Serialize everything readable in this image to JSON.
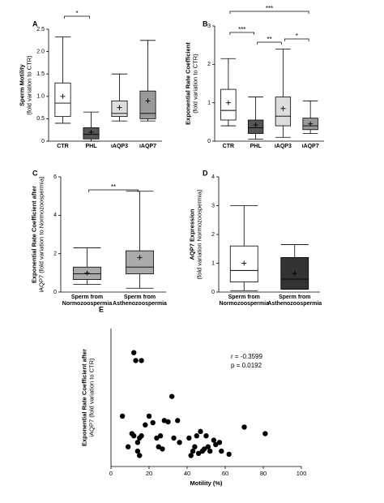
{
  "chart_data": [
    {
      "type": "box",
      "label": "A",
      "y_label": [
        "Sperm Motility",
        "(fold variation to CTR)"
      ],
      "categories": [
        "CTR",
        "PHL",
        "iAQP3",
        "iAQP7"
      ],
      "boxes": [
        {
          "min": 0.4,
          "q1": 0.55,
          "median": 0.85,
          "q3": 1.3,
          "max": 2.33,
          "mean": 1.0,
          "color": "#ffffff"
        },
        {
          "min": 0.0,
          "q1": 0.05,
          "median": 0.15,
          "q3": 0.3,
          "max": 0.65,
          "mean": 0.2,
          "color": "#555555"
        },
        {
          "min": 0.45,
          "q1": 0.55,
          "median": 0.62,
          "q3": 0.9,
          "max": 1.5,
          "mean": 0.75,
          "color": "#dddddd"
        },
        {
          "min": 0.45,
          "q1": 0.5,
          "median": 0.62,
          "q3": 1.12,
          "max": 2.25,
          "mean": 0.9,
          "color": "#999999"
        }
      ],
      "ylim": [
        0,
        2.5
      ],
      "yticks": [
        0,
        0.5,
        {
          "value": 1,
          "label": "1.0"
        },
        1.5,
        {
          "value": 2,
          "label": "2.0"
        },
        2.5
      ],
      "significance": [
        {
          "from": "CTR",
          "to": "PHL",
          "label": "*"
        }
      ]
    },
    {
      "type": "box",
      "label": "B",
      "y_label": [
        "Exponential Rate Coefficient",
        "(fold variation to CTR)"
      ],
      "categories": [
        "CTR",
        "PHL",
        "iAQP3",
        "iAQP7"
      ],
      "boxes": [
        {
          "min": 0.4,
          "q1": 0.55,
          "median": 0.8,
          "q3": 1.35,
          "max": 2.15,
          "mean": 1.0,
          "color": "#ffffff"
        },
        {
          "min": 0.05,
          "q1": 0.2,
          "median": 0.35,
          "q3": 0.55,
          "max": 1.15,
          "mean": 0.42,
          "color": "#555555"
        },
        {
          "min": 0.1,
          "q1": 0.4,
          "median": 0.65,
          "q3": 1.15,
          "max": 2.4,
          "mean": 0.85,
          "color": "#dddddd"
        },
        {
          "min": 0.2,
          "q1": 0.3,
          "median": 0.4,
          "q3": 0.6,
          "max": 1.05,
          "mean": 0.45,
          "color": "#999999"
        }
      ],
      "ylim": [
        0,
        3
      ],
      "yticks": [
        0,
        1,
        2,
        3
      ],
      "significance": [
        {
          "from": "CTR",
          "to": "iAQP7",
          "label": "***"
        },
        {
          "from": "CTR",
          "to": "PHL",
          "label": "***"
        },
        {
          "from": "PHL",
          "to": "iAQP3",
          "label": "**"
        },
        {
          "from": "iAQP3",
          "to": "iAQP7",
          "label": "*"
        }
      ]
    },
    {
      "type": "box",
      "label": "C",
      "y_label": [
        "Exponential Rate Coefficient after",
        "iAQP7 (fold variation to Normozoospermia)"
      ],
      "categories": [
        "Sperm from Normozoospermia",
        "Sperm from Asthenozoospermia"
      ],
      "boxes": [
        {
          "min": 0.4,
          "q1": 0.65,
          "median": 0.95,
          "q3": 1.3,
          "max": 2.3,
          "mean": 1.0,
          "color": "#aaaaaa"
        },
        {
          "min": 0.2,
          "q1": 0.95,
          "median": 1.3,
          "q3": 2.15,
          "max": 5.25,
          "mean": 1.8,
          "color": "#aaaaaa"
        }
      ],
      "ylim": [
        0,
        6
      ],
      "yticks": [
        0,
        2,
        4,
        6
      ],
      "significance": [
        {
          "from": "Sperm from Normozoospermia",
          "to": "Sperm from Asthenozoospermia",
          "label": "**"
        }
      ]
    },
    {
      "type": "box",
      "label": "D",
      "y_label": [
        "AQP7 Expression",
        "(fold variation Normozoospermia)"
      ],
      "categories": [
        "Sperm from Normozoospermia",
        "Sperm from Asthenozoospermia"
      ],
      "boxes": [
        {
          "min": 0.05,
          "q1": 0.35,
          "median": 0.75,
          "q3": 1.6,
          "max": 3.0,
          "mean": 1.0,
          "color": "#ffffff"
        },
        {
          "min": 0.1,
          "q1": 0.1,
          "median": 0.45,
          "q3": 1.2,
          "max": 1.65,
          "mean": 0.65,
          "color": "#333333"
        }
      ],
      "ylim": [
        0,
        4
      ],
      "yticks": [
        0,
        1,
        2,
        3,
        4
      ],
      "significance": []
    },
    {
      "type": "scatter",
      "label": "E",
      "y_label": [
        "Exponential Rate Coefficient after",
        "iAQP7 (fold variation to CTR)"
      ],
      "x_label": "Motility (%)",
      "annotations": [
        "r = -0.3599",
        "p = 0.0192"
      ],
      "color": "#000000",
      "x": [
        12,
        13,
        16,
        6,
        11,
        14,
        15,
        16,
        14,
        15,
        18,
        20,
        22,
        24,
        25,
        26,
        27,
        28,
        30,
        32,
        33,
        35,
        36,
        41,
        42,
        43,
        44,
        45,
        46,
        47,
        48,
        49,
        50,
        51,
        52,
        54,
        55,
        57,
        58,
        62,
        70,
        81,
        12,
        9
      ],
      "values": [
        2.5,
        2.32,
        2.32,
        1.05,
        0.65,
        0.45,
        0.55,
        0.6,
        0.25,
        0.15,
        0.85,
        1.05,
        0.9,
        0.55,
        0.35,
        0.6,
        0.3,
        0.95,
        0.92,
        1.5,
        0.55,
        0.95,
        0.45,
        0.55,
        0.15,
        0.25,
        0.35,
        0.6,
        0.2,
        0.7,
        0.25,
        0.3,
        0.6,
        0.35,
        0.25,
        0.5,
        0.4,
        0.45,
        0.25,
        0.18,
        0.8,
        0.65,
        0.6,
        0.35
      ],
      "xlim": [
        0,
        100
      ],
      "xticks": [
        0,
        20,
        40,
        60,
        80,
        100
      ],
      "ylim": [
        -0.1,
        3.05
      ]
    }
  ]
}
